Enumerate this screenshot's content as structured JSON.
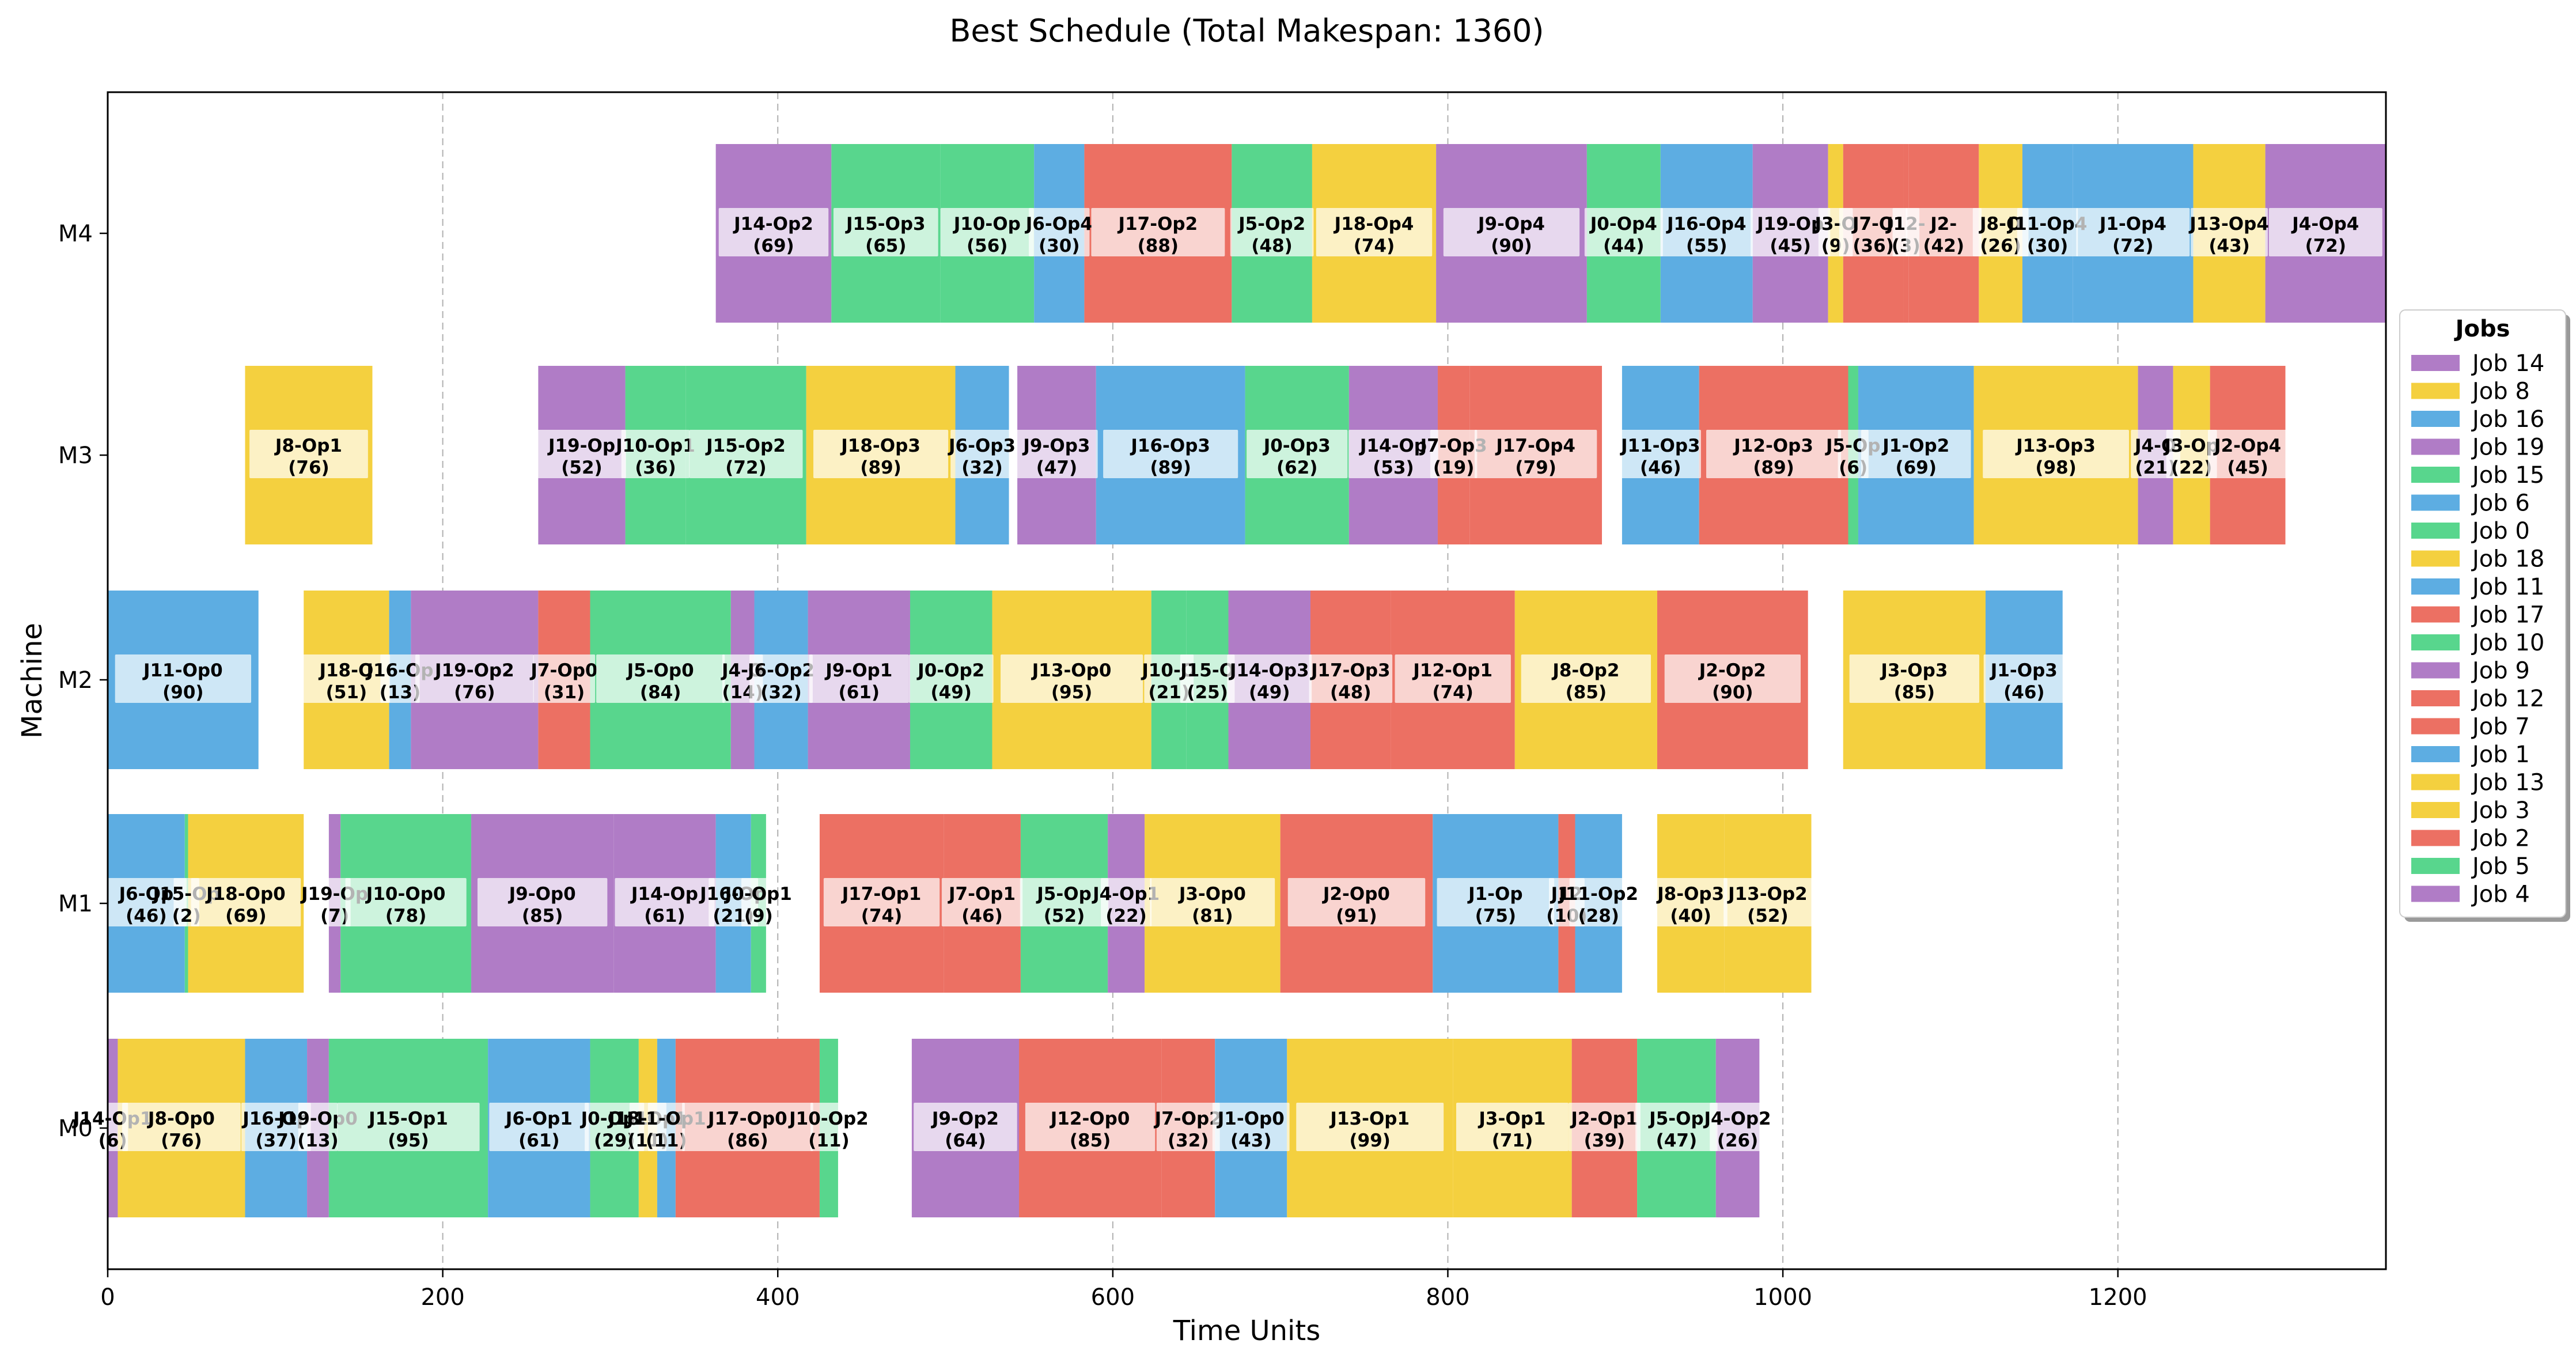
{
  "chart_data": {
    "type": "gantt",
    "title": "Best Schedule (Total Makespan: 1360)",
    "xlabel": "Time Units",
    "ylabel": "Machine",
    "xlim": [
      0,
      1360
    ],
    "xticks": [
      0,
      200,
      400,
      600,
      800,
      1000,
      1200
    ],
    "machines": [
      "M0",
      "M1",
      "M2",
      "M3",
      "M4"
    ],
    "grid": "vertical dashed at x ticks",
    "legend": {
      "title": "Jobs",
      "placement": "right, outside plot",
      "entries": [
        {
          "label": "Job 14",
          "color": "#b07cc6"
        },
        {
          "label": "Job 8",
          "color": "#f4d03f"
        },
        {
          "label": "Job 16",
          "color": "#5dade2"
        },
        {
          "label": "Job 19",
          "color": "#b07cc6"
        },
        {
          "label": "Job 15",
          "color": "#58d68d"
        },
        {
          "label": "Job 6",
          "color": "#5dade2"
        },
        {
          "label": "Job 0",
          "color": "#58d68d"
        },
        {
          "label": "Job 18",
          "color": "#f4d03f"
        },
        {
          "label": "Job 11",
          "color": "#5dade2"
        },
        {
          "label": "Job 17",
          "color": "#ec7063"
        },
        {
          "label": "Job 10",
          "color": "#58d68d"
        },
        {
          "label": "Job 9",
          "color": "#b07cc6"
        },
        {
          "label": "Job 12",
          "color": "#ec7063"
        },
        {
          "label": "Job 7",
          "color": "#ec7063"
        },
        {
          "label": "Job 1",
          "color": "#5dade2"
        },
        {
          "label": "Job 13",
          "color": "#f4d03f"
        },
        {
          "label": "Job 3",
          "color": "#f4d03f"
        },
        {
          "label": "Job 2",
          "color": "#ec7063"
        },
        {
          "label": "Job 5",
          "color": "#58d68d"
        },
        {
          "label": "Job 4",
          "color": "#b07cc6"
        }
      ]
    },
    "tasks": [
      {
        "machine": "M0",
        "job": 14,
        "op": "J14-Op1",
        "start": 0,
        "duration": 6
      },
      {
        "machine": "M0",
        "job": 8,
        "op": "J8-Op0",
        "start": 6,
        "duration": 76
      },
      {
        "machine": "M0",
        "job": 16,
        "op": "J16-Op",
        "start": 82,
        "duration": 37
      },
      {
        "machine": "M0",
        "job": 19,
        "op": "J19-Op0",
        "start": 119,
        "duration": 13
      },
      {
        "machine": "M0",
        "job": 15,
        "op": "J15-Op1",
        "start": 132,
        "duration": 95
      },
      {
        "machine": "M0",
        "job": 6,
        "op": "J6-Op1",
        "start": 227,
        "duration": 61
      },
      {
        "machine": "M0",
        "job": 0,
        "op": "J0-Op1",
        "start": 288,
        "duration": 29
      },
      {
        "machine": "M0",
        "job": 18,
        "op": "J18-Op1",
        "start": 317,
        "duration": 11
      },
      {
        "machine": "M0",
        "job": 11,
        "op": "J11-Op1",
        "start": 328,
        "duration": 11
      },
      {
        "machine": "M0",
        "job": 17,
        "op": "J17-Op0",
        "start": 339,
        "duration": 86
      },
      {
        "machine": "M0",
        "job": 10,
        "op": "J10-Op2",
        "start": 425,
        "duration": 11
      },
      {
        "machine": "M0",
        "job": 9,
        "op": "J9-Op2",
        "start": 480,
        "duration": 64
      },
      {
        "machine": "M0",
        "job": 12,
        "op": "J12-Op0",
        "start": 544,
        "duration": 85
      },
      {
        "machine": "M0",
        "job": 7,
        "op": "J7-Op2",
        "start": 629,
        "duration": 32
      },
      {
        "machine": "M0",
        "job": 1,
        "op": "J1-Op0",
        "start": 661,
        "duration": 43
      },
      {
        "machine": "M0",
        "job": 13,
        "op": "J13-Op1",
        "start": 704,
        "duration": 99
      },
      {
        "machine": "M0",
        "job": 3,
        "op": "J3-Op1",
        "start": 803,
        "duration": 71
      },
      {
        "machine": "M0",
        "job": 2,
        "op": "J2-Op1",
        "start": 874,
        "duration": 39
      },
      {
        "machine": "M0",
        "job": 5,
        "op": "J5-Op",
        "start": 913,
        "duration": 47
      },
      {
        "machine": "M0",
        "job": 4,
        "op": "J4-Op2",
        "start": 960,
        "duration": 26
      },
      {
        "machine": "M1",
        "job": 6,
        "op": "J6-Op",
        "start": 0,
        "duration": 46
      },
      {
        "machine": "M1",
        "job": 15,
        "op": "J15-Op",
        "start": 46,
        "duration": 2
      },
      {
        "machine": "M1",
        "job": 18,
        "op": "J18-Op0",
        "start": 48,
        "duration": 69
      },
      {
        "machine": "M1",
        "job": 19,
        "op": "J19-Op",
        "start": 132,
        "duration": 7
      },
      {
        "machine": "M1",
        "job": 10,
        "op": "J10-Op0",
        "start": 139,
        "duration": 78
      },
      {
        "machine": "M1",
        "job": 9,
        "op": "J9-Op0",
        "start": 217,
        "duration": 85
      },
      {
        "machine": "M1",
        "job": 14,
        "op": "J14-Op",
        "start": 302,
        "duration": 61
      },
      {
        "machine": "M1",
        "job": 16,
        "op": "J16-Op",
        "start": 363,
        "duration": 21
      },
      {
        "machine": "M1",
        "job": 0,
        "op": "J0-Op1",
        "start": 384,
        "duration": 9
      },
      {
        "machine": "M1",
        "job": 17,
        "op": "J17-Op1",
        "start": 425,
        "duration": 74
      },
      {
        "machine": "M1",
        "job": 7,
        "op": "J7-Op1",
        "start": 499,
        "duration": 46
      },
      {
        "machine": "M1",
        "job": 5,
        "op": "J5-Op",
        "start": 545,
        "duration": 52
      },
      {
        "machine": "M1",
        "job": 4,
        "op": "J4-Op1",
        "start": 597,
        "duration": 22
      },
      {
        "machine": "M1",
        "job": 3,
        "op": "J3-Op0",
        "start": 619,
        "duration": 81
      },
      {
        "machine": "M1",
        "job": 2,
        "op": "J2-Op0",
        "start": 700,
        "duration": 91
      },
      {
        "machine": "M1",
        "job": 1,
        "op": "J1-Op",
        "start": 791,
        "duration": 75
      },
      {
        "machine": "M1",
        "job": 12,
        "op": "J12",
        "start": 866,
        "duration": 10
      },
      {
        "machine": "M1",
        "job": 11,
        "op": "J11-Op2",
        "start": 876,
        "duration": 28
      },
      {
        "machine": "M1",
        "job": 8,
        "op": "J8-Op3",
        "start": 925,
        "duration": 40
      },
      {
        "machine": "M1",
        "job": 13,
        "op": "J13-Op2",
        "start": 965,
        "duration": 52
      },
      {
        "machine": "M2",
        "job": 11,
        "op": "J11-Op0",
        "start": 0,
        "duration": 90
      },
      {
        "machine": "M2",
        "job": 18,
        "op": "J18-O",
        "start": 117,
        "duration": 51
      },
      {
        "machine": "M2",
        "job": 16,
        "op": "J16-Op",
        "start": 168,
        "duration": 13
      },
      {
        "machine": "M2",
        "job": 19,
        "op": "J19-Op2",
        "start": 181,
        "duration": 76
      },
      {
        "machine": "M2",
        "job": 7,
        "op": "J7-Op0",
        "start": 257,
        "duration": 31
      },
      {
        "machine": "M2",
        "job": 5,
        "op": "J5-Op0",
        "start": 288,
        "duration": 84
      },
      {
        "machine": "M2",
        "job": 4,
        "op": "J4-O",
        "start": 372,
        "duration": 14
      },
      {
        "machine": "M2",
        "job": 6,
        "op": "J6-Op2",
        "start": 386,
        "duration": 32
      },
      {
        "machine": "M2",
        "job": 9,
        "op": "J9-Op1",
        "start": 418,
        "duration": 61
      },
      {
        "machine": "M2",
        "job": 0,
        "op": "J0-Op2",
        "start": 479,
        "duration": 49
      },
      {
        "machine": "M2",
        "job": 13,
        "op": "J13-Op0",
        "start": 528,
        "duration": 95
      },
      {
        "machine": "M2",
        "job": 10,
        "op": "J10-O",
        "start": 623,
        "duration": 21
      },
      {
        "machine": "M2",
        "job": 15,
        "op": "J15-O",
        "start": 644,
        "duration": 25
      },
      {
        "machine": "M2",
        "job": 14,
        "op": "J14-Op3",
        "start": 669,
        "duration": 49
      },
      {
        "machine": "M2",
        "job": 17,
        "op": "J17-Op3",
        "start": 718,
        "duration": 48
      },
      {
        "machine": "M2",
        "job": 12,
        "op": "J12-Op1",
        "start": 766,
        "duration": 74
      },
      {
        "machine": "M2",
        "job": 8,
        "op": "J8-Op2",
        "start": 840,
        "duration": 85
      },
      {
        "machine": "M2",
        "job": 2,
        "op": "J2-Op2",
        "start": 925,
        "duration": 90
      },
      {
        "machine": "M2",
        "job": 3,
        "op": "J3-Op3",
        "start": 1036,
        "duration": 85
      },
      {
        "machine": "M2",
        "job": 1,
        "op": "J1-Op3",
        "start": 1121,
        "duration": 46
      },
      {
        "machine": "M3",
        "job": 8,
        "op": "J8-Op1",
        "start": 82,
        "duration": 76
      },
      {
        "machine": "M3",
        "job": 19,
        "op": "J19-Op",
        "start": 257,
        "duration": 52
      },
      {
        "machine": "M3",
        "job": 10,
        "op": "J10-Op1",
        "start": 309,
        "duration": 36
      },
      {
        "machine": "M3",
        "job": 15,
        "op": "J15-Op2",
        "start": 345,
        "duration": 72
      },
      {
        "machine": "M3",
        "job": 18,
        "op": "J18-Op3",
        "start": 417,
        "duration": 89
      },
      {
        "machine": "M3",
        "job": 6,
        "op": "J6-Op3",
        "start": 506,
        "duration": 32
      },
      {
        "machine": "M3",
        "job": 9,
        "op": "J9-Op3",
        "start": 543,
        "duration": 47
      },
      {
        "machine": "M3",
        "job": 16,
        "op": "J16-Op3",
        "start": 590,
        "duration": 89
      },
      {
        "machine": "M3",
        "job": 0,
        "op": "J0-Op3",
        "start": 679,
        "duration": 62
      },
      {
        "machine": "M3",
        "job": 14,
        "op": "J14-Op",
        "start": 741,
        "duration": 53
      },
      {
        "machine": "M3",
        "job": 7,
        "op": "J7-Op3",
        "start": 794,
        "duration": 19
      },
      {
        "machine": "M3",
        "job": 17,
        "op": "J17-Op4",
        "start": 813,
        "duration": 79
      },
      {
        "machine": "M3",
        "job": 11,
        "op": "J11-Op3",
        "start": 904,
        "duration": 46
      },
      {
        "machine": "M3",
        "job": 12,
        "op": "J12-Op3",
        "start": 950,
        "duration": 89
      },
      {
        "machine": "M3",
        "job": 5,
        "op": "J5-Op",
        "start": 1039,
        "duration": 6
      },
      {
        "machine": "M3",
        "job": 1,
        "op": "J1-Op2",
        "start": 1045,
        "duration": 69
      },
      {
        "machine": "M3",
        "job": 13,
        "op": "J13-Op3",
        "start": 1114,
        "duration": 98
      },
      {
        "machine": "M3",
        "job": 4,
        "op": "J4-O",
        "start": 1212,
        "duration": 21
      },
      {
        "machine": "M3",
        "job": 3,
        "op": "J3-Op",
        "start": 1233,
        "duration": 22
      },
      {
        "machine": "M3",
        "job": 2,
        "op": "J2-Op4",
        "start": 1255,
        "duration": 45
      },
      {
        "machine": "M4",
        "job": 14,
        "op": "J14-Op2",
        "start": 363,
        "duration": 69
      },
      {
        "machine": "M4",
        "job": 15,
        "op": "J15-Op3",
        "start": 432,
        "duration": 65
      },
      {
        "machine": "M4",
        "job": 10,
        "op": "J10-Op",
        "start": 497,
        "duration": 56
      },
      {
        "machine": "M4",
        "job": 6,
        "op": "J6-Op4",
        "start": 553,
        "duration": 30
      },
      {
        "machine": "M4",
        "job": 17,
        "op": "J17-Op2",
        "start": 583,
        "duration": 88
      },
      {
        "machine": "M4",
        "job": 5,
        "op": "J5-Op2",
        "start": 671,
        "duration": 48
      },
      {
        "machine": "M4",
        "job": 18,
        "op": "J18-Op4",
        "start": 719,
        "duration": 74
      },
      {
        "machine": "M4",
        "job": 9,
        "op": "J9-Op4",
        "start": 793,
        "duration": 90
      },
      {
        "machine": "M4",
        "job": 0,
        "op": "J0-Op4",
        "start": 883,
        "duration": 44
      },
      {
        "machine": "M4",
        "job": 16,
        "op": "J16-Op4",
        "start": 927,
        "duration": 55
      },
      {
        "machine": "M4",
        "job": 19,
        "op": "J19-Op",
        "start": 982,
        "duration": 45
      },
      {
        "machine": "M4",
        "job": 3,
        "op": "J3-O",
        "start": 1027,
        "duration": 9
      },
      {
        "machine": "M4",
        "job": 7,
        "op": "J7-O",
        "start": 1036,
        "duration": 36
      },
      {
        "machine": "M4",
        "job": 12,
        "op": "J12-",
        "start": 1072,
        "duration": 3
      },
      {
        "machine": "M4",
        "job": 2,
        "op": "J2-",
        "start": 1075,
        "duration": 42
      },
      {
        "machine": "M4",
        "job": 8,
        "op": "J8-O",
        "start": 1117,
        "duration": 26
      },
      {
        "machine": "M4",
        "job": 11,
        "op": "J11-Op4",
        "start": 1143,
        "duration": 30
      },
      {
        "machine": "M4",
        "job": 1,
        "op": "J1-Op4",
        "start": 1173,
        "duration": 72
      },
      {
        "machine": "M4",
        "job": 13,
        "op": "J13-Op4",
        "start": 1245,
        "duration": 43
      },
      {
        "machine": "M4",
        "job": 4,
        "op": "J4-Op4",
        "start": 1288,
        "duration": 72
      }
    ]
  }
}
